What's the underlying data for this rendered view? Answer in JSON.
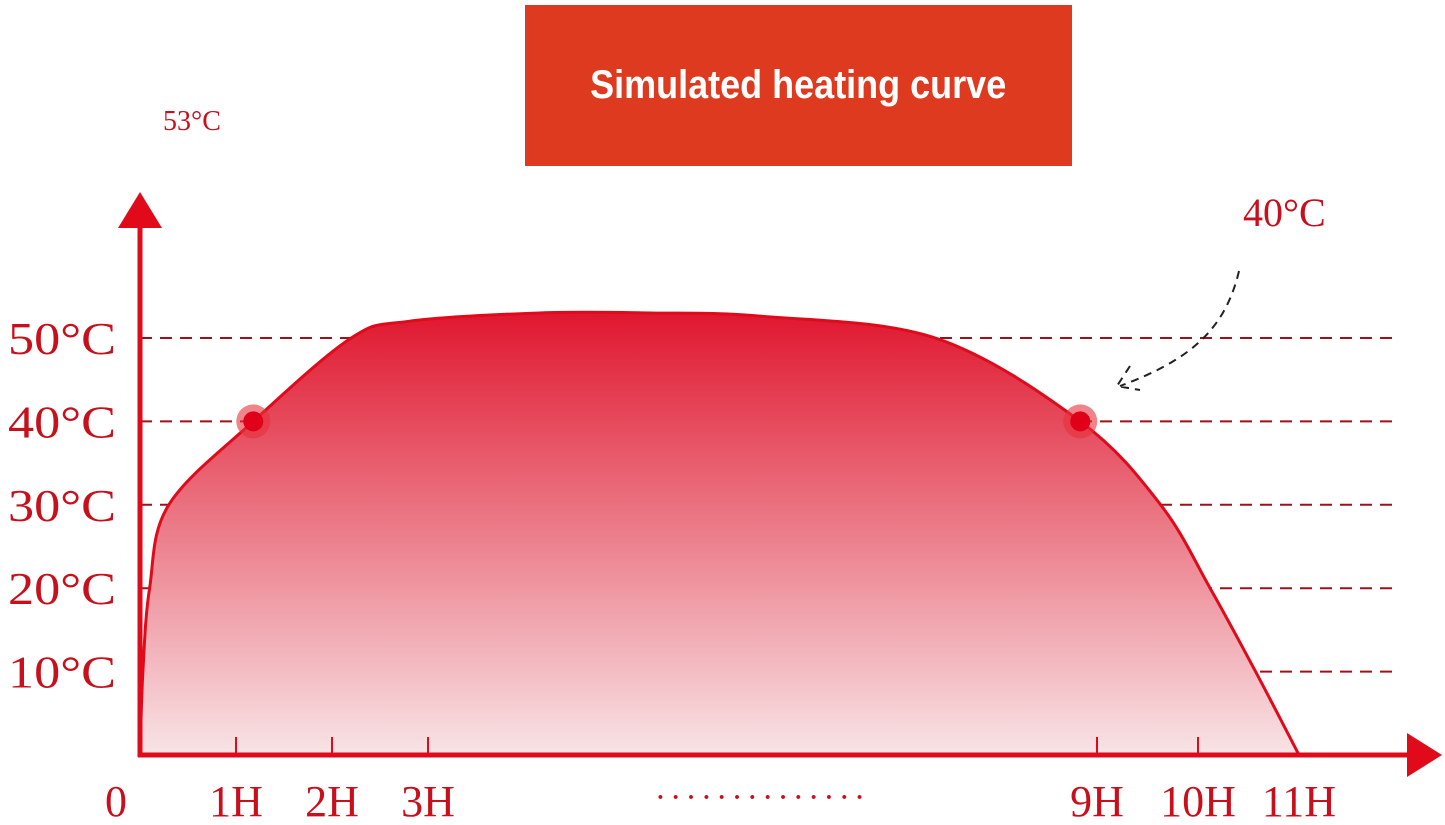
{
  "chart_data": {
    "type": "area",
    "title": "Simulated heating curve",
    "xlabel": "",
    "ylabel": "",
    "y_top_label": "53°C",
    "x_ticks": [
      {
        "value": 0,
        "label": "0"
      },
      {
        "value": 1,
        "label": "1H"
      },
      {
        "value": 2,
        "label": "2H"
      },
      {
        "value": 3,
        "label": "3H"
      },
      {
        "value": 9,
        "label": "9H"
      },
      {
        "value": 10,
        "label": "10H"
      },
      {
        "value": 11,
        "label": "11H"
      }
    ],
    "x_break_label": "··············",
    "y_ticks": [
      {
        "value": 10,
        "label": "10°C"
      },
      {
        "value": 20,
        "label": "20°C"
      },
      {
        "value": 30,
        "label": "30°C"
      },
      {
        "value": 40,
        "label": "40°C"
      },
      {
        "value": 50,
        "label": "50°C"
      }
    ],
    "grid": "dashed horizontal",
    "xlim": [
      0,
      11
    ],
    "ylim": [
      0,
      53
    ],
    "series": [
      {
        "points": [
          [
            0,
            0
          ],
          [
            0.03,
            10
          ],
          [
            0.1,
            20
          ],
          [
            0.3,
            30
          ],
          [
            1.18,
            40
          ],
          [
            2.2,
            50
          ],
          [
            2.8,
            52
          ],
          [
            4.0,
            53
          ],
          [
            5.0,
            53
          ],
          [
            6.0,
            52.6
          ],
          [
            7.55,
            50
          ],
          [
            8.85,
            40
          ],
          [
            9.63,
            30
          ],
          [
            10.12,
            20
          ],
          [
            10.57,
            10
          ],
          [
            11,
            0
          ]
        ]
      }
    ],
    "markers": [
      [
        1.18,
        40
      ],
      [
        8.85,
        40
      ]
    ],
    "annotation": {
      "label": "40°C",
      "points_to": [
        8.85,
        40
      ]
    },
    "colors": {
      "title_bg": "#dd3a1f",
      "axis": "#e00a1a",
      "label": "#c8101d",
      "fill_top": "#e0172f",
      "fill_bottom": "#f8e4e6",
      "grid": "#a0101a"
    }
  }
}
